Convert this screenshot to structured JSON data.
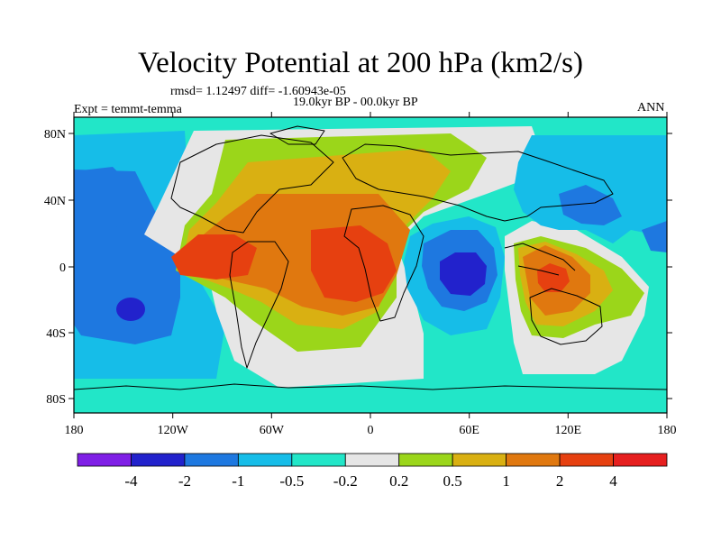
{
  "title": "Velocity Potential at 200 hPa (km2/s)",
  "stats": {
    "rmsd": "rmsd= 1.12497 diff= -1.60943e-05",
    "period": "19.0kyr BP - 00.0kyr BP",
    "expt": "Expt = temmt-temma",
    "season": "ANN"
  },
  "map": {
    "lon_labels": [
      "180",
      "120W",
      "60W",
      "0",
      "60E",
      "120E",
      "180"
    ],
    "lat_labels": [
      "80N",
      "40N",
      "0",
      "40S",
      "80S"
    ]
  },
  "colorbar": {
    "colors": [
      "#7f1fe6",
      "#2222cc",
      "#1e78e0",
      "#16bde8",
      "#22e6c8",
      "#e6e6e6",
      "#9bd61a",
      "#d9b012",
      "#e0780f",
      "#e64010",
      "#e61f1f"
    ],
    "labels": [
      "-4",
      "-2",
      "-1",
      "-0.5",
      "-0.2",
      "0.2",
      "0.5",
      "1",
      "2",
      "4"
    ]
  }
}
